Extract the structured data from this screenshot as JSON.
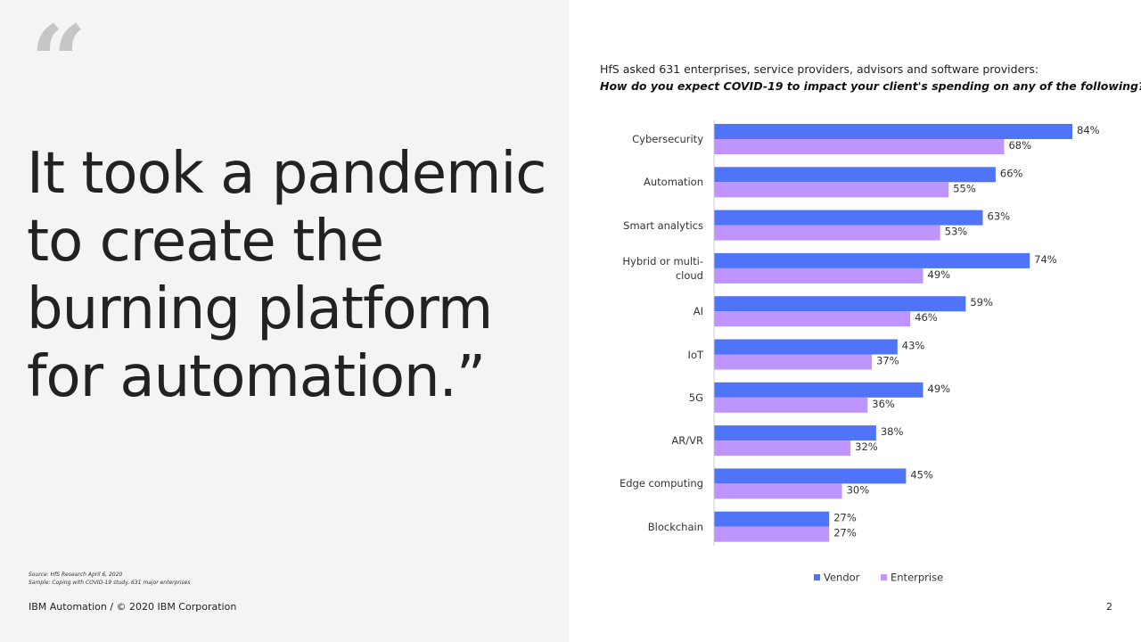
{
  "slide": {
    "quote_mark": "“",
    "headline": [
      "It took a pandemic",
      "to create the",
      "burning platform",
      "for automation.”"
    ],
    "source": "Source: HfS Research April 6, 2020",
    "sample": "Sample: Coping with COVID-19 study, 631 major enterprises",
    "footer": "IBM Automation / © 2020 IBM Corporation",
    "page_number": "2"
  },
  "chart_data": {
    "type": "bar",
    "orientation": "horizontal",
    "subtitle": "HfS asked 631 enterprises, service providers, advisors and software providers:",
    "title": "How do you expect COVID-19 to impact your client's spending on any of the following?",
    "categories": [
      "Cybersecurity",
      "Automation",
      "Smart analytics",
      "Hybrid or multi-cloud",
      "AI",
      "IoT",
      "5G",
      "AR/VR",
      "Edge computing",
      "Blockchain"
    ],
    "series": [
      {
        "name": "Vendor",
        "color": "#4f74f7",
        "values": [
          84,
          66,
          63,
          74,
          59,
          43,
          49,
          38,
          45,
          27
        ],
        "value_labels": [
          "84%",
          "66%",
          "63%",
          "74%",
          "59%",
          "43%",
          "49%",
          "38%",
          "45%",
          "27%"
        ]
      },
      {
        "name": "Enterprise",
        "color": "#be95ff",
        "values": [
          68,
          55,
          53,
          49,
          46,
          37,
          36,
          32,
          30,
          27
        ],
        "value_labels": [
          "68%",
          "55%",
          "53%",
          "49%",
          "46%",
          "37%",
          "36%",
          "32%",
          "30%",
          "27%"
        ]
      }
    ],
    "legend": "bottom"
  }
}
